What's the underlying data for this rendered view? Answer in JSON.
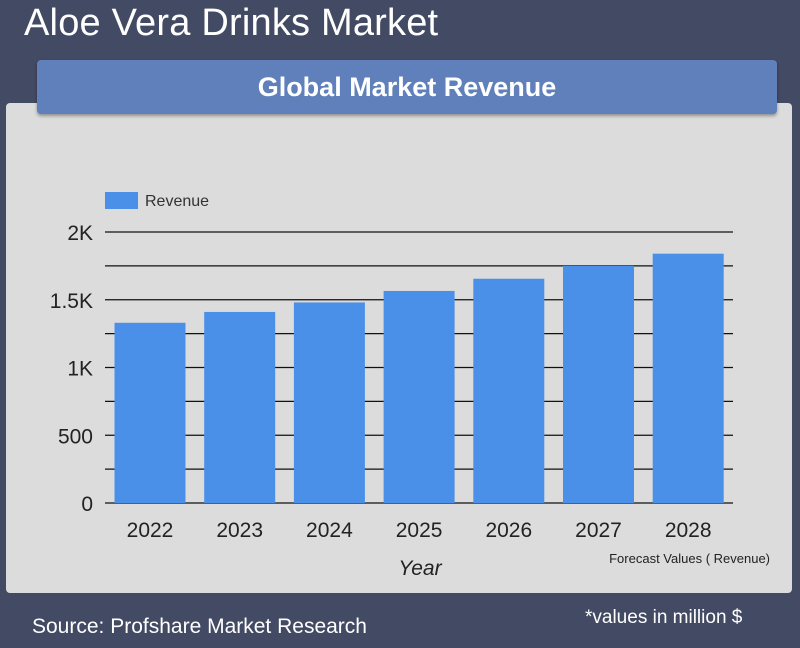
{
  "header": {
    "title": "Aloe Vera Drinks Market"
  },
  "banner": {
    "title": "Global Market Revenue"
  },
  "footer": {
    "source": "Source: Profshare Market Research",
    "units_note": "*values in million $"
  },
  "colors": {
    "bar": "#4a90e8",
    "background": "#434a63",
    "banner": "#5f80ba",
    "panel": "#dcdcdc"
  },
  "chart_data": {
    "type": "bar",
    "title": "Global Market Revenue",
    "categories": [
      "2022",
      "2023",
      "2024",
      "2025",
      "2026",
      "2027",
      "2028"
    ],
    "series": [
      {
        "name": "Revenue",
        "values": [
          1330,
          1410,
          1480,
          1565,
          1655,
          1750,
          1840
        ]
      }
    ],
    "xlabel": "Year",
    "ylabel": "",
    "ylim": [
      0,
      2000
    ],
    "yticks": [
      0,
      500,
      1000,
      1500,
      2000
    ],
    "ytick_labels": [
      "0",
      "500",
      "1K",
      "1.5K",
      "2K"
    ],
    "grid": true,
    "legend": "top-left",
    "annotation": "Forecast Values ( Revenue)"
  }
}
